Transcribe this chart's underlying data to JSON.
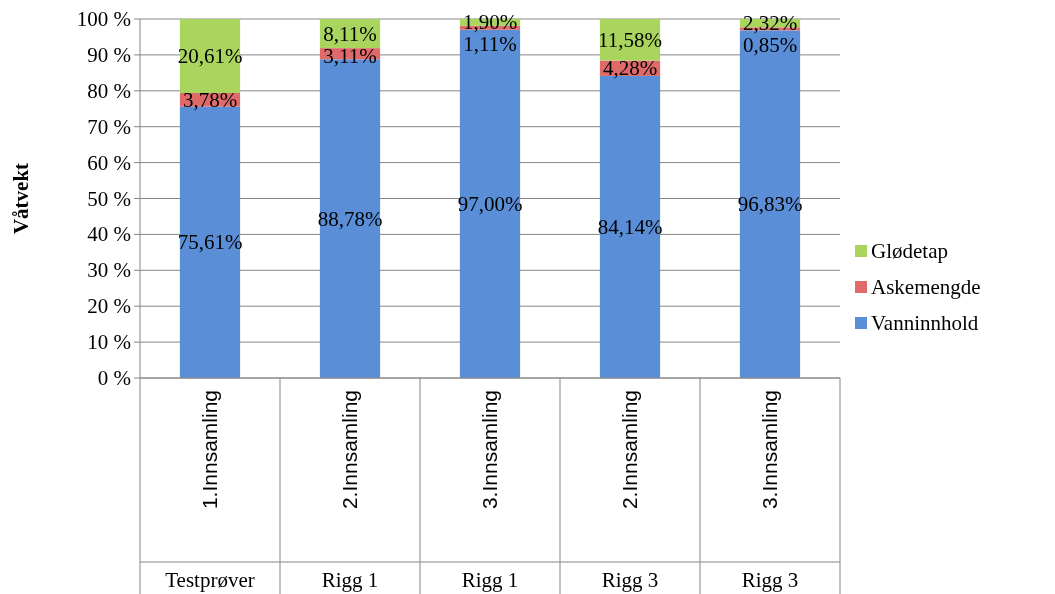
{
  "chart_data": {
    "type": "bar",
    "stacked": true,
    "ylabel": "Våtvekt",
    "categories": [
      "1.Innsamling\nTestprøver",
      "2.Innsamling\nRigg 1",
      "3.Innsamling\nRigg 1",
      "2.Innsamling\nRigg 3",
      "3.Innsamling\nRigg 3"
    ],
    "series": [
      {
        "name": "Vanninnhold",
        "color": "#5a8fd8",
        "values": [
          75.61,
          88.78,
          97.0,
          84.14,
          96.83
        ],
        "value_labels": [
          "75,61%",
          "88,78%",
          "97,00%",
          "84,14%",
          "96,83%"
        ]
      },
      {
        "name": "Askemengde",
        "color": "#e06a6a",
        "values": [
          3.78,
          3.11,
          1.11,
          4.28,
          0.85
        ],
        "value_labels": [
          "3,78%",
          "3,11%",
          "1,11%",
          "4,28%",
          "0,85%"
        ]
      },
      {
        "name": "Glødetap",
        "color": "#a9d45e",
        "values": [
          20.61,
          8.11,
          1.9,
          11.58,
          2.32
        ],
        "value_labels": [
          "20,61%",
          "8,11%",
          "1,90%",
          "11,58%",
          "2,32%"
        ]
      }
    ],
    "ylim": [
      0,
      100
    ],
    "yticks": [
      {
        "value": 0,
        "label": "0 %"
      },
      {
        "value": 10,
        "label": "10 %"
      },
      {
        "value": 20,
        "label": "20 %"
      },
      {
        "value": 30,
        "label": "30 %"
      },
      {
        "value": 40,
        "label": "40 %"
      },
      {
        "value": 50,
        "label": "50 %"
      },
      {
        "value": 60,
        "label": "60 %"
      },
      {
        "value": 70,
        "label": "70 %"
      },
      {
        "value": 80,
        "label": "80 %"
      },
      {
        "value": 90,
        "label": "90 %"
      },
      {
        "value": 100,
        "label": "100 %"
      }
    ],
    "grid": "y",
    "legend": "right"
  }
}
